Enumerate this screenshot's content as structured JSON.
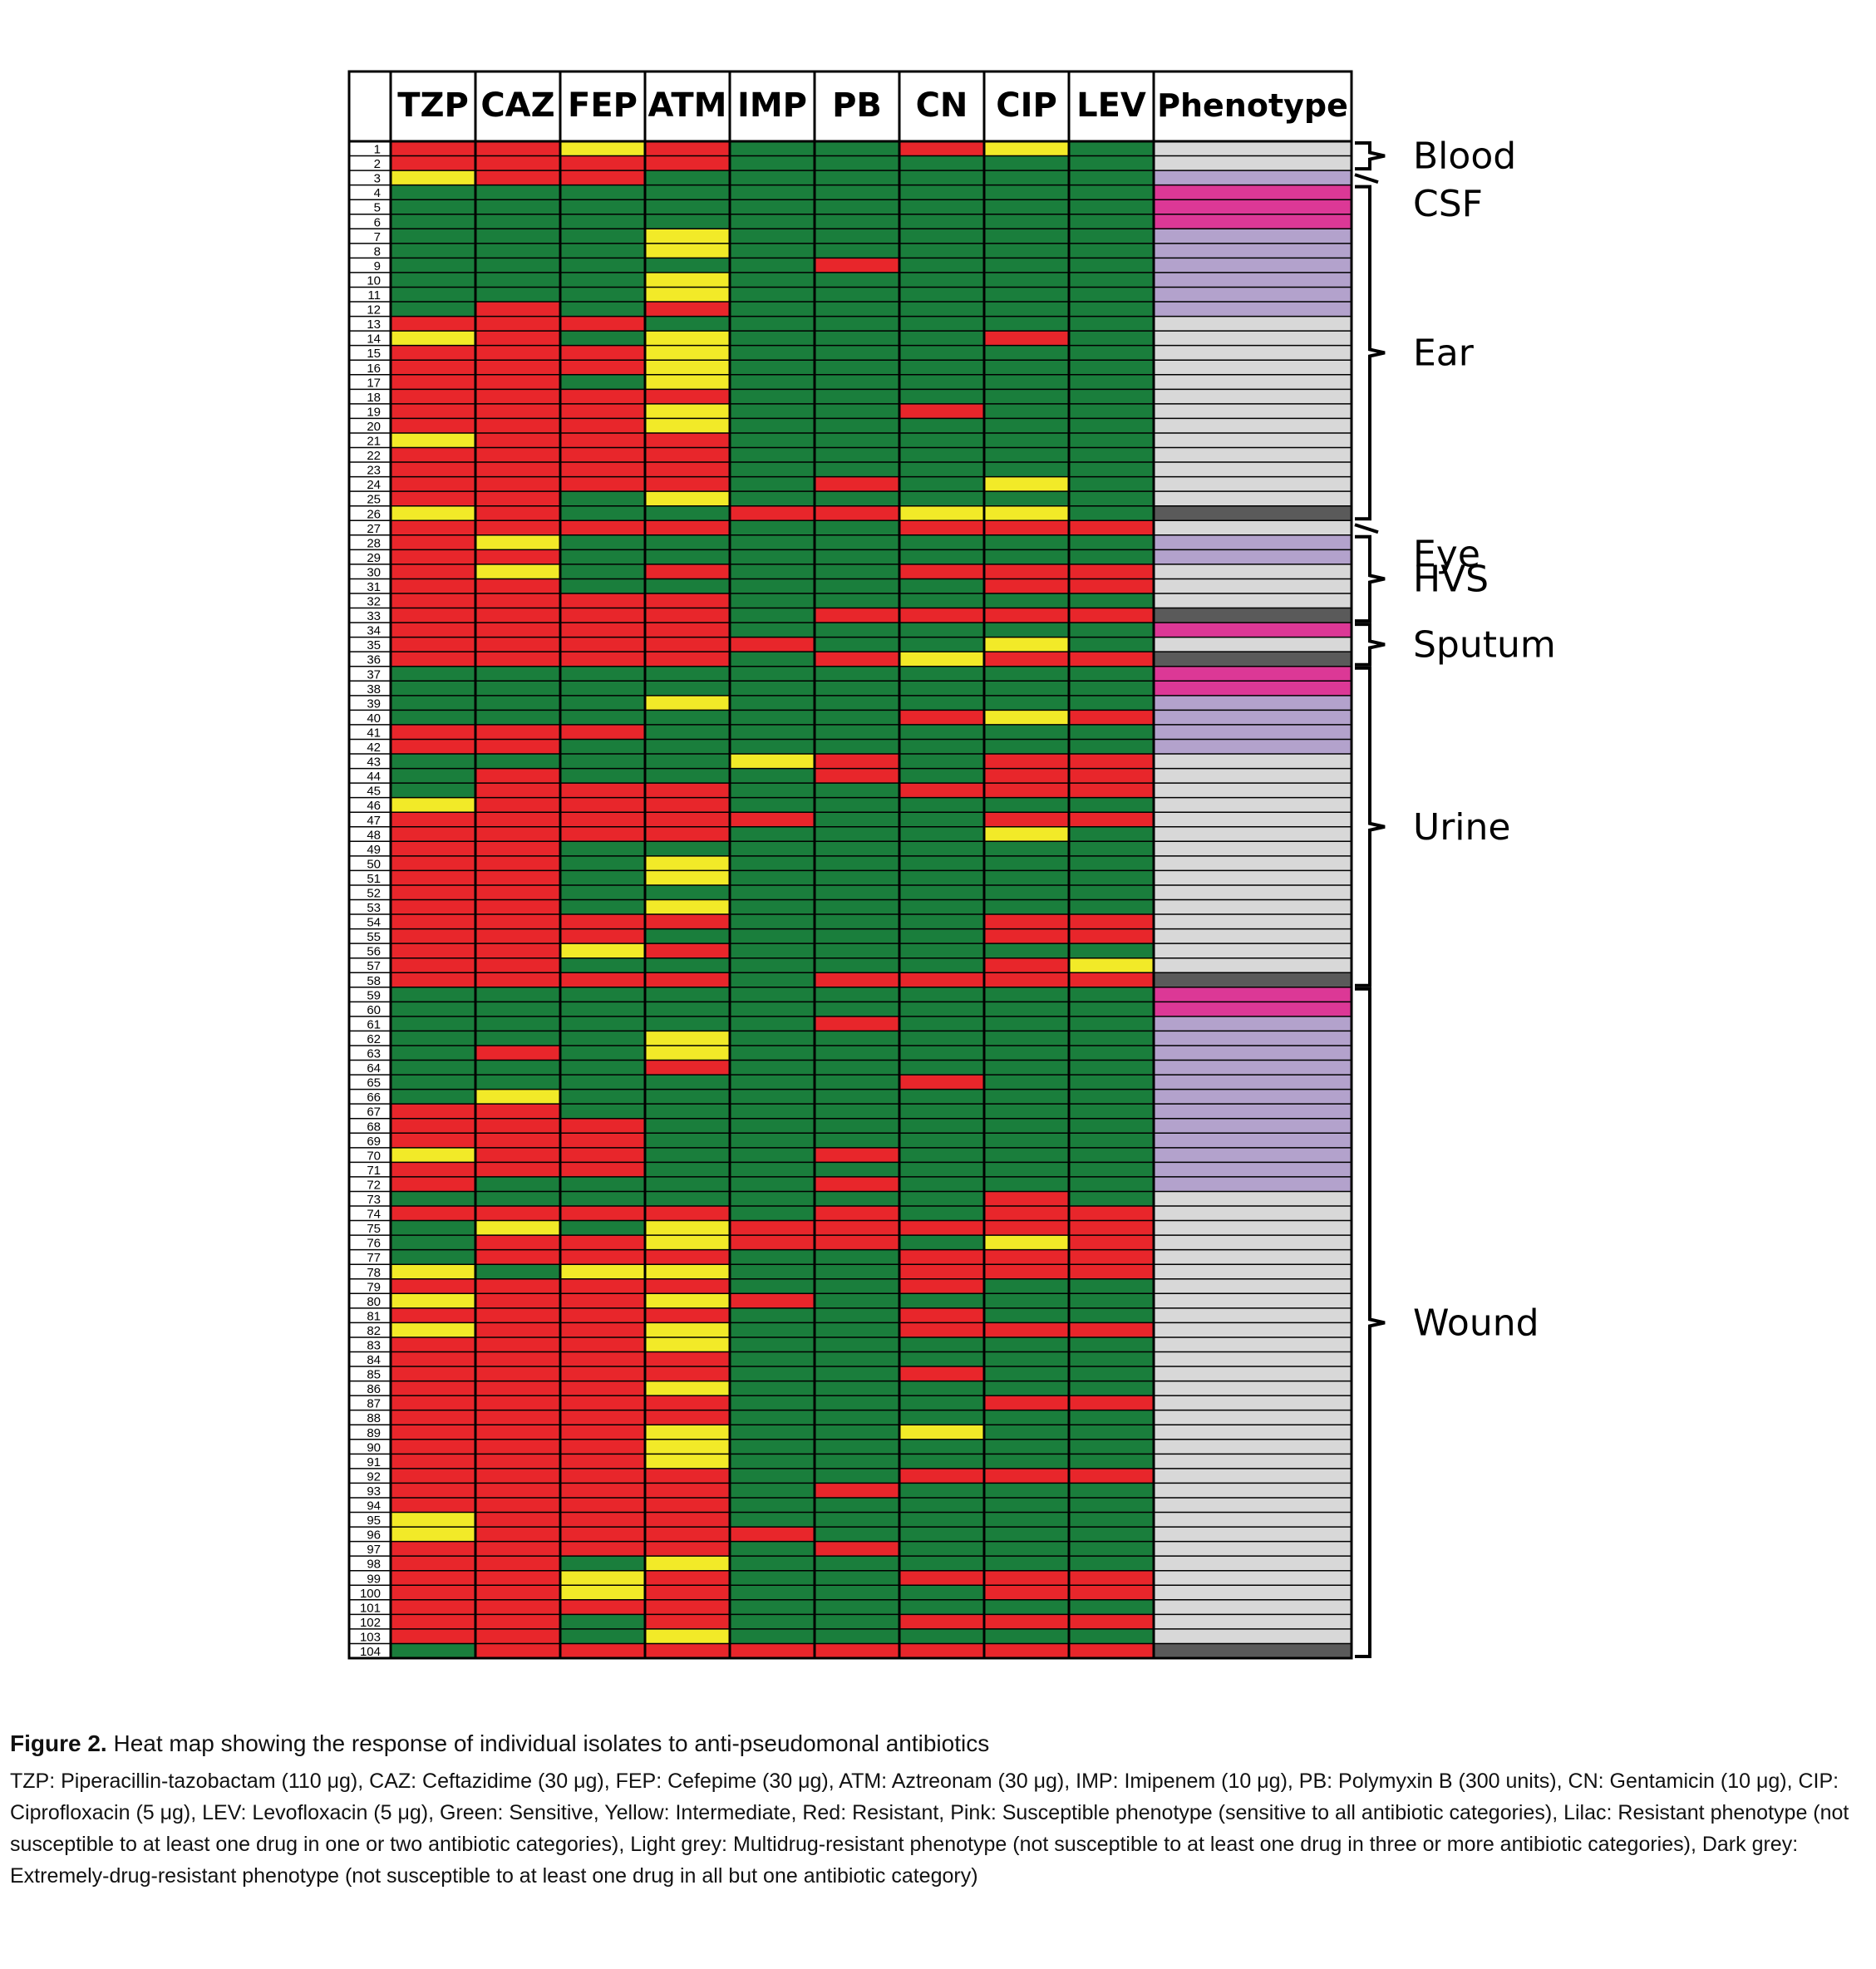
{
  "chart_data": {
    "type": "heatmap",
    "columns": [
      "TZP",
      "CAZ",
      "FEP",
      "ATM",
      "IMP",
      "PB",
      "CN",
      "CIP",
      "LEV",
      "Phenotype"
    ],
    "drug_columns": [
      "TZP",
      "CAZ",
      "FEP",
      "ATM",
      "IMP",
      "PB",
      "CN",
      "CIP",
      "LEV"
    ],
    "phenotype_column": "Phenotype",
    "row_labels": [
      "1",
      "2",
      "3",
      "4",
      "5",
      "6",
      "7",
      "8",
      "9",
      "10",
      "11",
      "12",
      "13",
      "14",
      "15",
      "16",
      "17",
      "18",
      "19",
      "20",
      "21",
      "22",
      "23",
      "24",
      "25",
      "26",
      "27",
      "28",
      "29",
      "30",
      "31",
      "32",
      "33",
      "34",
      "35",
      "36",
      "37",
      "38",
      "39",
      "40",
      "41",
      "42",
      "43",
      "44",
      "45",
      "46",
      "47",
      "48",
      "49",
      "50",
      "51",
      "52",
      "53",
      "54",
      "55",
      "56",
      "57",
      "58",
      "59",
      "60",
      "61",
      "62",
      "63",
      "64",
      "65",
      "66",
      "67",
      "68",
      "69",
      "70",
      "71",
      "72",
      "73",
      "74",
      "75",
      "76",
      "77",
      "78",
      "79",
      "80",
      "81",
      "82",
      "83",
      "84",
      "85",
      "86",
      "87",
      "88",
      "89",
      "90",
      "91",
      "92",
      "93",
      "94",
      "95",
      "96",
      "97",
      "98",
      "99",
      "100",
      "101",
      "102",
      "103",
      "104"
    ],
    "cell_code": {
      "G": "Sensitive",
      "Y": "Intermediate",
      "R": "Resistant"
    },
    "cells": [
      "RRYRGGRYG",
      "RRRRGGGGG",
      "YRRGGGGGG",
      "GGGGGGGGG",
      "GGGGGGGGG",
      "GGGGGGGGG",
      "GGGYGGGGG",
      "GGGYGGGGG",
      "GGGGGRGGG",
      "GGGYGGGGG",
      "GGGYGGGGG",
      "GRGRGGGGG",
      "RRRGGGGGG",
      "YRGYGGGRG",
      "RRRYGGGGG",
      "RRRYGGGGG",
      "RRGYGGGGG",
      "RRRRGGGGG",
      "RRRYGGRGG",
      "RRRYGGGGG",
      "YRRRGGGGG",
      "RRRRGGGGG",
      "RRRRGGGGG",
      "RRRRGRGYG",
      "RRGYGGGGG",
      "YRGGRRYYG",
      "RRRRGGRRR",
      "RYGGGGGGG",
      "RRGGGGGGG",
      "RYGRGGRRR",
      "RRGGGGGRR",
      "RRRRGGGGG",
      "RRRRGRRRR",
      "RRRRGGGGG",
      "RRRRRGGYG",
      "RRRRGRYRR",
      "GGGGGGGGG",
      "GGGGGGGGG",
      "GGGYGGGGG",
      "GGGGGGRYR",
      "RRRGGGGGG",
      "RRGGGGGGG",
      "GGGGYRGRR",
      "GRGGGRGRR",
      "GRRRGGRRR",
      "YRRRGGGGG",
      "RRRRRGGRR",
      "RRRRGGGYG",
      "RRGGGGGGG",
      "RRGYGGGGG",
      "RRGYGGGGG",
      "RRGGGGGGG",
      "RRGYGGGGG",
      "RRRRGGGRR",
      "RRRGGGGRR",
      "RRYRGGGGG",
      "RRGGGGGRY",
      "RRRRGRRRR",
      "GGGGGGGGG",
      "GGGGGGGGG",
      "GGGGGRGGG",
      "GGGYGGGGG",
      "GRGYGGGGG",
      "GGGRGGGGG",
      "GGGGGGRGG",
      "GYGGGGGGG",
      "RRGGGGGGG",
      "RRRGGGGGG",
      "RRRGGGGGG",
      "YRRGGRGGG",
      "RRRGGGGGG",
      "RGGGGRGGG",
      "GGGGGGGRG",
      "RRRRGRGRR",
      "GYGYRRRRR",
      "GRRYRRGYR",
      "GRRRGGRRR",
      "YGYYGGRRR",
      "RRRRGGRGG",
      "YRRYRGGGG",
      "RRRRGGRGG",
      "YRRYGGRRR",
      "RRRYGGGGG",
      "RRRRGGGGG",
      "RRRRGGRGG",
      "RRRYGGGGG",
      "RRRRGGGRR",
      "RRRRGGGGG",
      "RRRYGGYGG",
      "RRRYGGGGG",
      "RRRYGGGGG",
      "RRRRGGRRR",
      "RRRRGRGGG",
      "RRRRGGGGG",
      "YRRRGGGGG",
      "YRRRRGGGG",
      "RRRRGRGGG",
      "RRGYGGGGG",
      "RRYRGGRRR",
      "RRYRGGGRR",
      "RRRRGGGGG",
      "RRGRGGRRR",
      "RRGYGGGGG",
      "GRRRRRRRR"
    ],
    "phenotype_code": {
      "S": "Susceptible",
      "R": "Resistant",
      "M": "Multidrug-resistant",
      "X": "Extremely-drug-resistant"
    },
    "phenotypes": "MMRSSSRRRRRRMMMMMMMMMMMMMXMRRMMMXSMXSSRRRRMMMMMMMMMMMMMMMXSSRRRRRRRRRRRRMMMMMMMMMMMMMMMMMMMMMMMMMMMMMMMX",
    "groups": [
      {
        "label": "Blood",
        "first": 1,
        "last": 2
      },
      {
        "label": "CSF",
        "first": 3,
        "last": 3
      },
      {
        "label": "Ear",
        "first": 4,
        "last": 26
      },
      {
        "label": "Eye",
        "first": 27,
        "last": 27
      },
      {
        "label": "HVS",
        "first": 28,
        "last": 33
      },
      {
        "label": "Sputum",
        "first": 34,
        "last": 36
      },
      {
        "label": "Urine",
        "first": 37,
        "last": 58
      },
      {
        "label": "Wound",
        "first": 59,
        "last": 104
      }
    ],
    "colors": {
      "Sensitive": "#1a7e3c",
      "Intermediate": "#f2ea28",
      "Resistant": "#e8262b",
      "Susceptible": "#dc3896",
      "Resistant phenotype": "#b3a2cc",
      "Multidrug-resistant": "#d8d8d8",
      "Extremely-drug-resistant": "#5a5a5a"
    }
  },
  "caption": {
    "label": "Figure 2.",
    "title": "Heat map showing the response of individual isolates to anti-pseudomonal antibiotics",
    "body": "TZP: Piperacillin-tazobactam (110 μg), CAZ: Ceftazidime (30 μg), FEP: Cefepime (30 μg), ATM: Aztreonam (30 μg), IMP: Imipenem (10 μg), PB: Polymyxin B (300 units), CN: Gentamicin (10 μg), CIP: Ciprofloxacin (5 μg), LEV: Levofloxacin (5 μg), Green: Sensitive, Yellow: Intermediate, Red: Resistant, Pink: Susceptible phenotype (sensitive to all antibiotic categories), Lilac: Resistant phenotype (not susceptible to at least one drug in one or two antibiotic categories), Light grey: Multidrug-resistant phenotype (not susceptible to at least one drug in three or more antibiotic categories), Dark grey: Extremely-drug-resistant phenotype (not susceptible to at least one drug in all but one antibiotic category)"
  }
}
